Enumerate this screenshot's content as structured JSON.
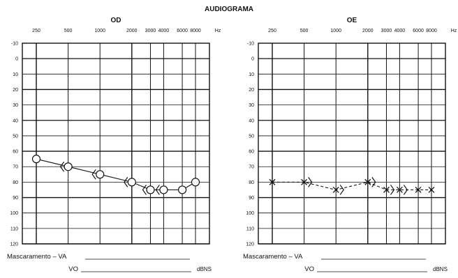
{
  "chart_data": {
    "type": "line",
    "title": "AUDIOGRAMA",
    "x_unit": "Hz",
    "x_ticks": [
      250,
      500,
      1000,
      2000,
      3000,
      4000,
      6000,
      8000
    ],
    "y_ticks": [
      -10,
      0,
      10,
      20,
      30,
      40,
      50,
      60,
      70,
      80,
      90,
      100,
      110,
      120
    ],
    "ylim": [
      -10,
      120
    ],
    "y_inverted": true,
    "x_scale": "log",
    "panels": [
      {
        "ear_label": "OD",
        "series": [
          {
            "symbol": "circle",
            "line": "solid",
            "x": [
              250,
              500,
              1000,
              2000,
              3000,
              4000,
              6000,
              8000
            ],
            "y": [
              65,
              70,
              75,
              80,
              85,
              85,
              85,
              80
            ]
          },
          {
            "symbol": "left-bracket",
            "line": "none",
            "x": [
              500,
              1000,
              2000,
              3000,
              4000
            ],
            "y": [
              70,
              75,
              80,
              85,
              85
            ]
          }
        ],
        "masking_label": "Mascaramento – VA",
        "vo_label": "VO",
        "unit_label": "dBNS"
      },
      {
        "ear_label": "OE",
        "series": [
          {
            "symbol": "cross",
            "line": "dashed",
            "x": [
              250,
              500,
              1000,
              2000,
              3000,
              4000,
              6000,
              8000
            ],
            "y": [
              80,
              80,
              85,
              80,
              85,
              85,
              85,
              85
            ]
          },
          {
            "symbol": "right-bracket",
            "line": "none",
            "x": [
              500,
              1000,
              2000,
              3000,
              4000
            ],
            "y": [
              80,
              85,
              80,
              85,
              85
            ]
          }
        ],
        "masking_label": "Mascaramento – VA",
        "vo_label": "VO",
        "unit_label": "dBNS"
      }
    ],
    "grid": true
  }
}
